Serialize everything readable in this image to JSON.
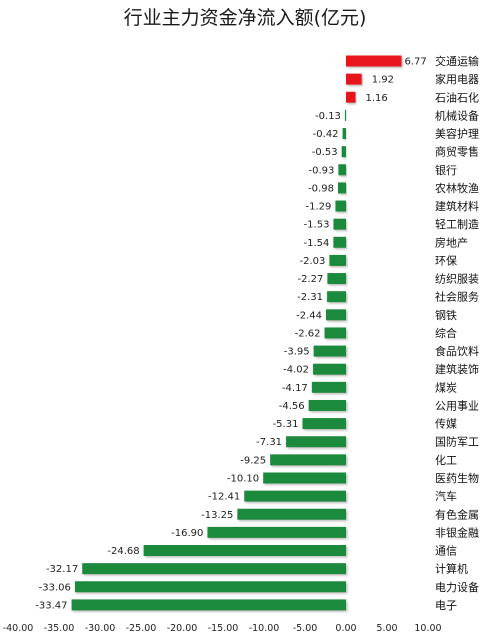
{
  "chart_data": {
    "type": "bar",
    "orientation": "horizontal",
    "title": "行业主力资金净流入额(亿元)",
    "xlabel": "",
    "ylabel": "",
    "xlim": [
      -40,
      10
    ],
    "x_ticks": [
      "-40.00",
      "-35.00",
      "-30.00",
      "-25.00",
      "-20.00",
      "-15.00",
      "-10.00",
      "-5.00",
      "0.00",
      "5.00",
      "10.00"
    ],
    "grid": false,
    "legend": "none",
    "colors": {
      "positive": "#e8141b",
      "negative": "#1a8a3c"
    },
    "categories": [
      "交通运输",
      "家用电器",
      "石油石化",
      "机械设备",
      "美容护理",
      "商贸零售",
      "银行",
      "农林牧渔",
      "建筑材料",
      "轻工制造",
      "房地产",
      "环保",
      "纺织服装",
      "社会服务",
      "钢铁",
      "综合",
      "食品饮料",
      "建筑装饰",
      "煤炭",
      "公用事业",
      "传媒",
      "国防军工",
      "化工",
      "医药生物",
      "汽车",
      "有色金属",
      "非银金融",
      "通信",
      "计算机",
      "电力设备",
      "电子"
    ],
    "values": [
      6.77,
      1.92,
      1.16,
      -0.13,
      -0.42,
      -0.53,
      -0.93,
      -0.98,
      -1.29,
      -1.53,
      -1.54,
      -2.03,
      -2.27,
      -2.31,
      -2.44,
      -2.62,
      -3.95,
      -4.02,
      -4.17,
      -4.56,
      -5.31,
      -7.31,
      -9.25,
      -10.1,
      -12.41,
      -13.25,
      -16.9,
      -24.68,
      -32.17,
      -33.06,
      -33.47
    ],
    "value_labels": [
      "6.77",
      "1.92",
      "1.16",
      "-0.13",
      "-0.42",
      "-0.53",
      "-0.93",
      "-0.98",
      "-1.29",
      "-1.53",
      "-1.54",
      "-2.03",
      "-2.27",
      "-2.31",
      "-2.44",
      "-2.62",
      "-3.95",
      "-4.02",
      "-4.17",
      "-4.56",
      "-5.31",
      "-7.31",
      "-9.25",
      "-10.10",
      "-12.41",
      "-13.25",
      "-16.90",
      "-24.68",
      "-32.17",
      "-33.06",
      "-33.47"
    ]
  }
}
